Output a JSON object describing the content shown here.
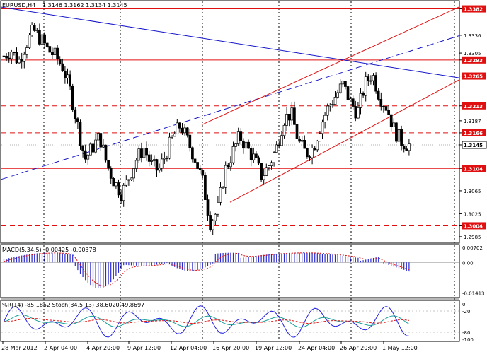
{
  "header": {
    "symbol": "EURUSD,H4",
    "ohlc": "1.3146 1.3162 1.3134 1.3145"
  },
  "macd": {
    "label": "MACD(5,34,5) -0.00425 -0.00378"
  },
  "stoch": {
    "label": "%R(14) -85.1852 Stoch(34,5,13) 38.6020 49.8697"
  },
  "colors": {
    "red_line": "#e01010",
    "blue_line": "#1515c8",
    "label_bg": "#e01010",
    "macd_bar": "#2a2acc",
    "signal": "#e01010",
    "wpr": "#2020e0",
    "stoch_main": "#1aa09a",
    "stoch_signal": "#e01010"
  },
  "chart_data": {
    "type": "candlestick",
    "symbol": "EURUSD",
    "timeframe": "H4",
    "ylim": [
      1.2975,
      1.3395
    ],
    "price_ticks": [
      "1.3382",
      "1.3336",
      "1.3305",
      "1.3293",
      "1.3265",
      "1.3213",
      "1.3187",
      "1.3166",
      "1.3145",
      "1.3104",
      "1.3065",
      "1.3025",
      "1.3004",
      "1.2985"
    ],
    "highlighted_levels": [
      "1.3382",
      "1.3293",
      "1.3265",
      "1.3213",
      "1.3166",
      "1.3104",
      "1.3004"
    ],
    "current_price": "1.3145",
    "x_labels": [
      "28 Mar 2012",
      "2 Apr 04:00",
      "4 Apr 20:00",
      "9 Apr 12:00",
      "12 Apr 04:00",
      "16 Apr 20:00",
      "19 Apr 12:00",
      "24 Apr 04:00",
      "26 Apr 20:00",
      "1 May 12:00"
    ],
    "close_path": [
      1.33,
      1.331,
      1.329,
      1.332,
      1.3345,
      1.333,
      1.331,
      1.33,
      1.328,
      1.324,
      1.318,
      1.312,
      1.314,
      1.316,
      1.311,
      1.308,
      1.306,
      1.309,
      1.312,
      1.314,
      1.311,
      1.31,
      1.313,
      1.316,
      1.318,
      1.315,
      1.312,
      1.308,
      1.301,
      1.303,
      1.31,
      1.313,
      1.316,
      1.314,
      1.312,
      1.309,
      1.311,
      1.314,
      1.319,
      1.32,
      1.315,
      1.313,
      1.314,
      1.318,
      1.321,
      1.323,
      1.325,
      1.322,
      1.32,
      1.325,
      1.327,
      1.323,
      1.321,
      1.317,
      1.315,
      1.3145
    ],
    "macd": {
      "label": "MACD(5,34,5)",
      "value": -0.00425,
      "signal": -0.00378,
      "ticks": [
        "0.00702",
        "0.00",
        "-0.01413"
      ],
      "ylim": [
        -0.016,
        0.008
      ]
    },
    "oscillators": {
      "wpr_label": "%R(14)",
      "wpr_value": -85.1852,
      "stoch_label": "Stoch(34,5,13)",
      "stoch_main": 38.602,
      "stoch_signal": 49.8697,
      "ticks": [
        "0",
        "-20",
        "-80",
        "-100"
      ]
    }
  }
}
